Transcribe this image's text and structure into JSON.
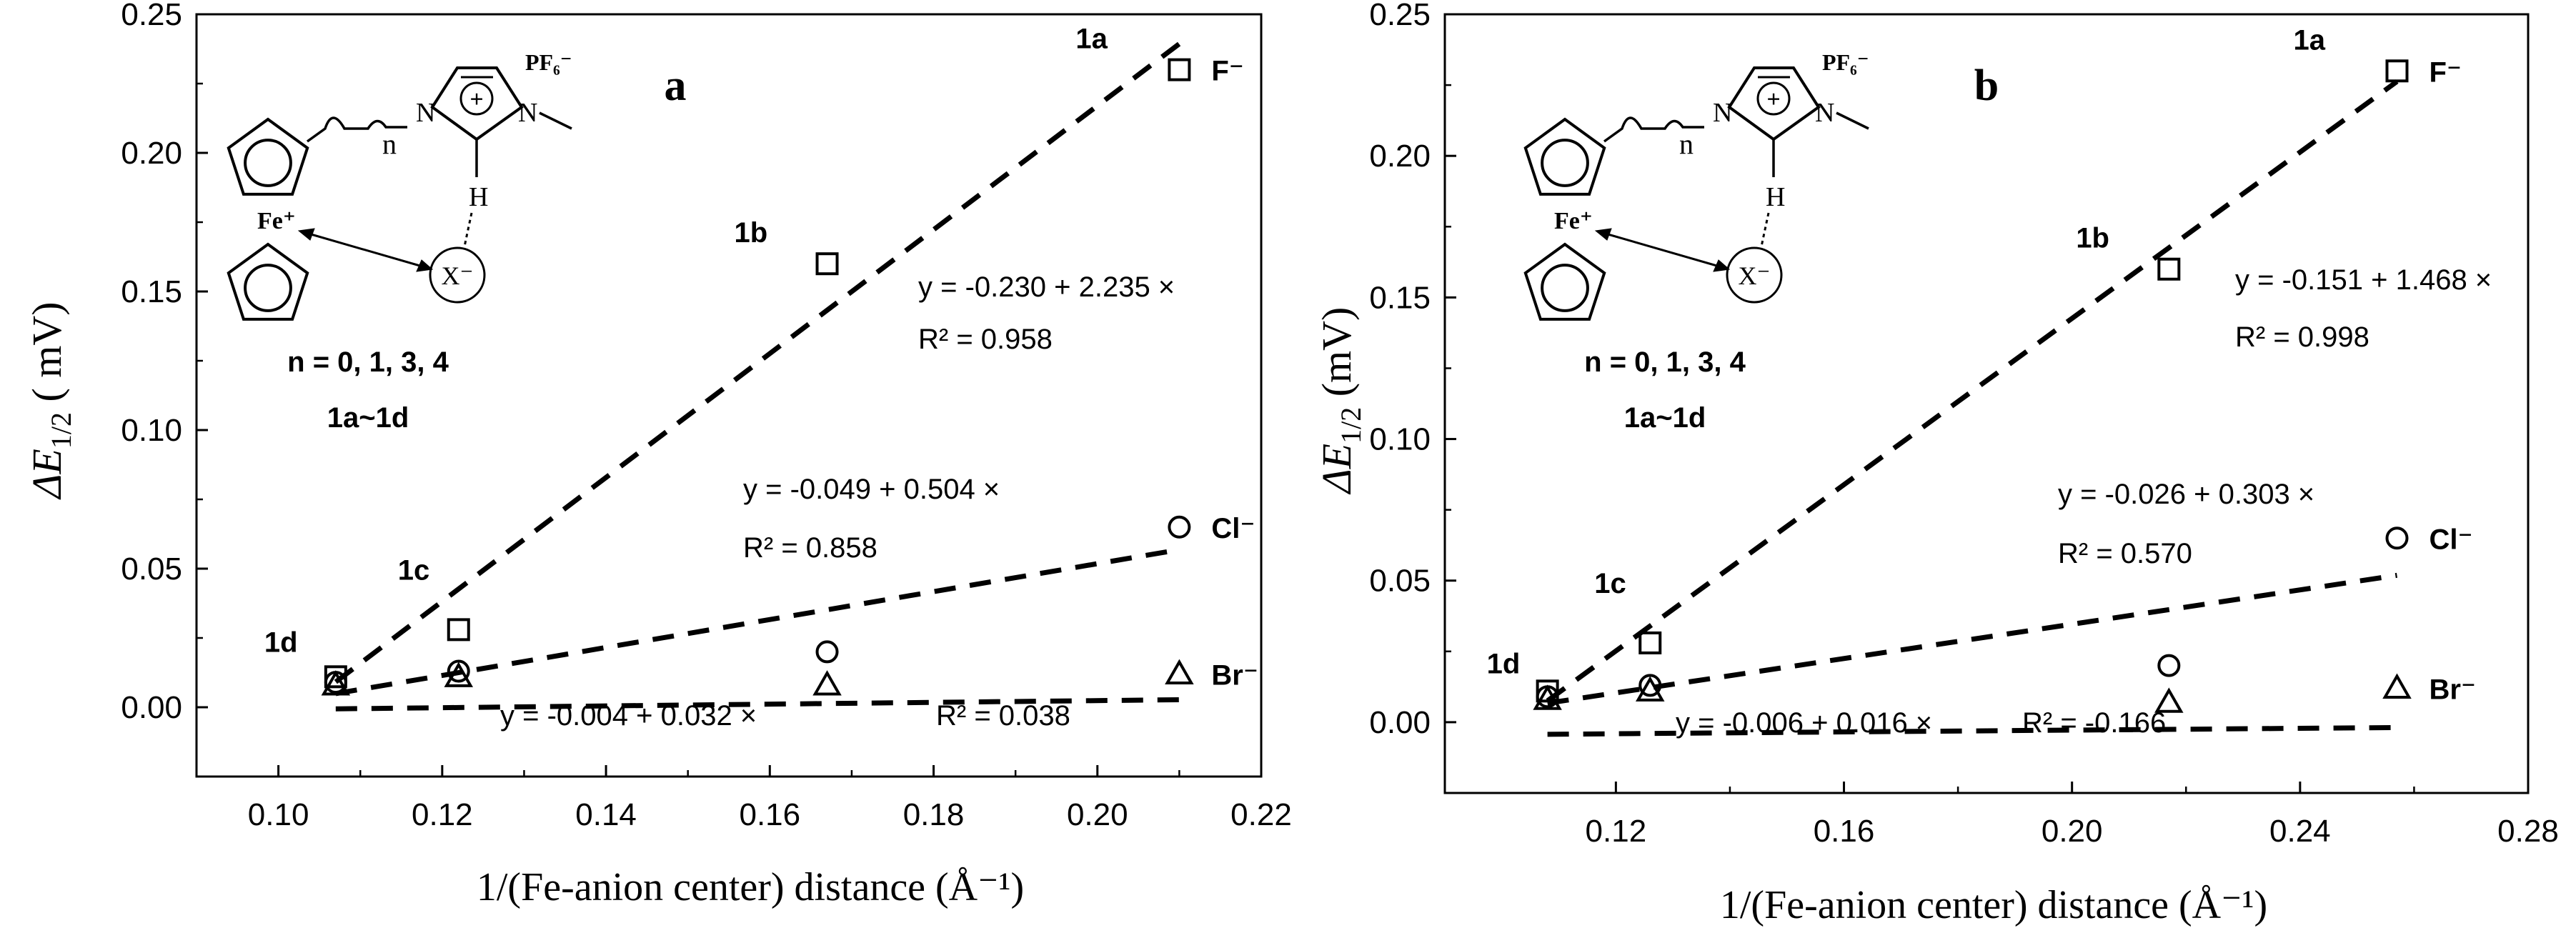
{
  "chart_data": [
    {
      "type": "scatter",
      "panel_label": "a",
      "ylabel_text": "ΔE",
      "ylabel_sub": "1/2",
      "ylabel_unit": " ( mV)",
      "xlabel": "1/(Fe-anion center) distance (Å⁻¹)",
      "xlim": [
        0.09,
        0.22
      ],
      "ylim": [
        -0.025,
        0.25
      ],
      "xticks": [
        "0.10",
        "0.12",
        "0.14",
        "0.16",
        "0.18",
        "0.20",
        "0.22"
      ],
      "xtick_values": [
        0.1,
        0.12,
        0.14,
        0.16,
        0.18,
        0.2,
        0.22
      ],
      "yticks": [
        "0.00",
        "0.05",
        "0.10",
        "0.15",
        "0.20",
        "0.25"
      ],
      "ytick_values": [
        0.0,
        0.05,
        0.1,
        0.15,
        0.2,
        0.25
      ],
      "series": [
        {
          "name": "F⁻",
          "marker": "square",
          "x": [
            0.107,
            0.122,
            0.167,
            0.21
          ],
          "y": [
            0.011,
            0.028,
            0.16,
            0.23
          ],
          "fit": {
            "intercept": -0.23,
            "slope": 2.235,
            "x_range": [
              0.107,
              0.21
            ]
          },
          "equation": "y = -0.230 + 2.235 ×",
          "r2": "R² = 0.958"
        },
        {
          "name": "Cl⁻",
          "marker": "circle",
          "x": [
            0.107,
            0.122,
            0.167,
            0.21
          ],
          "y": [
            0.009,
            0.013,
            0.02,
            0.065
          ],
          "fit": {
            "intercept": -0.049,
            "slope": 0.504,
            "x_range": [
              0.107,
              0.21
            ]
          },
          "equation": "y = -0.049 + 0.504 ×",
          "r2": "R² = 0.858"
        },
        {
          "name": "Br⁻",
          "marker": "triangle",
          "x": [
            0.107,
            0.122,
            0.167,
            0.21
          ],
          "y": [
            0.008,
            0.011,
            0.008,
            0.012
          ],
          "fit": {
            "intercept": -0.004,
            "slope": 0.032,
            "x_range": [
              0.107,
              0.21
            ]
          },
          "equation": "y = -0.004 + 0.032 ×",
          "r2": "R² = 0.038"
        }
      ],
      "point_labels": [
        {
          "text": "1a",
          "x": 0.21,
          "y": 0.23
        },
        {
          "text": "1b",
          "x": 0.167,
          "y": 0.16
        },
        {
          "text": "1c",
          "x": 0.122,
          "y": 0.028
        },
        {
          "text": "1d",
          "x": 0.107,
          "y": 0.011
        }
      ],
      "inset": {
        "substituent": "n",
        "n_values": "n = 0, 1, 3, 4",
        "compounds": "1a~1d",
        "counterion": "PF₆⁻",
        "iron": "Fe⁺",
        "hydrogen": "H",
        "anion": "X⁻",
        "charge": "+",
        "nitrogen": "N"
      }
    },
    {
      "type": "scatter",
      "panel_label": "b",
      "ylabel_text": "ΔE",
      "ylabel_sub": "1/2",
      "ylabel_unit": " (mV)",
      "xlabel": "1/(Fe-anion center) distance (Å⁻¹)",
      "xlim": [
        0.09,
        0.28
      ],
      "ylim": [
        -0.025,
        0.25
      ],
      "xticks": [
        "0.12",
        "0.16",
        "0.20",
        "0.24",
        "0.28"
      ],
      "xtick_values": [
        0.12,
        0.16,
        0.2,
        0.24,
        0.28
      ],
      "yticks": [
        "0.00",
        "0.05",
        "0.10",
        "0.15",
        "0.20",
        "0.25"
      ],
      "ytick_values": [
        0.0,
        0.05,
        0.1,
        0.15,
        0.2,
        0.25
      ],
      "series": [
        {
          "name": "F⁻",
          "marker": "square",
          "x": [
            0.108,
            0.126,
            0.217,
            0.257
          ],
          "y": [
            0.011,
            0.028,
            0.16,
            0.23
          ],
          "fit": {
            "intercept": -0.151,
            "slope": 1.468,
            "x_range": [
              0.108,
              0.257
            ]
          },
          "equation": "y = -0.151 + 1.468 ×",
          "r2": "R² = 0.998"
        },
        {
          "name": "Cl⁻",
          "marker": "circle",
          "x": [
            0.108,
            0.126,
            0.217,
            0.257
          ],
          "y": [
            0.009,
            0.013,
            0.02,
            0.065
          ],
          "fit": {
            "intercept": -0.026,
            "slope": 0.303,
            "x_range": [
              0.108,
              0.257
            ]
          },
          "equation": "y = -0.026 + 0.303 ×",
          "r2": "R² = 0.570"
        },
        {
          "name": "Br⁻",
          "marker": "triangle",
          "x": [
            0.108,
            0.126,
            0.217,
            0.257
          ],
          "y": [
            0.008,
            0.011,
            0.007,
            0.012
          ],
          "fit": {
            "intercept": -0.006,
            "slope": 0.016,
            "x_range": [
              0.108,
              0.257
            ]
          },
          "equation": "y = -0.006 + 0.016 ×",
          "r2": "R² = -0.166"
        }
      ],
      "point_labels": [
        {
          "text": "1a",
          "x": 0.257,
          "y": 0.23
        },
        {
          "text": "1b",
          "x": 0.217,
          "y": 0.16
        },
        {
          "text": "1c",
          "x": 0.126,
          "y": 0.028
        },
        {
          "text": "1d",
          "x": 0.108,
          "y": 0.011
        }
      ],
      "inset": {
        "substituent": "n",
        "n_values": "n = 0, 1, 3, 4",
        "compounds": "1a~1d",
        "counterion": "PF₆⁻",
        "iron": "Fe⁺",
        "hydrogen": "H",
        "anion": "X⁻",
        "charge": "+",
        "nitrogen": "N"
      }
    }
  ]
}
